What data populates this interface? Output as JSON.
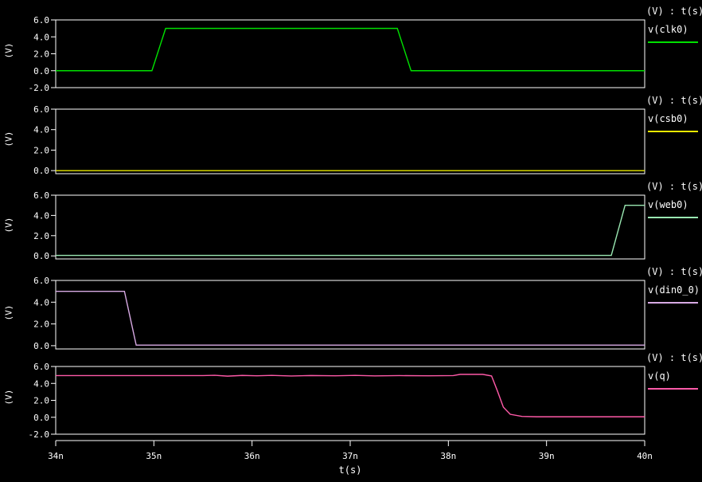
{
  "colors": {
    "background": "#000000",
    "frame": "#ffffff",
    "text": "#ffffff"
  },
  "chart_data": {
    "type": "line",
    "xlabel": "t(s)",
    "xlim": [
      34,
      40
    ],
    "x_unit": "n",
    "x_tick_values": [
      34,
      35,
      36,
      37,
      38,
      39,
      40
    ],
    "x_tick_labels": [
      "34n",
      "35n",
      "36n",
      "37n",
      "38n",
      "39n",
      "40n"
    ],
    "grid": false,
    "legend_position": "right",
    "plots": [
      {
        "name": "v(clk0)",
        "legend_header": "(V) : t(s)",
        "ylabel": "(V)",
        "color": "#00e000",
        "ylim": [
          -2,
          6
        ],
        "ytick_values": [
          6,
          4,
          2,
          0,
          -2
        ],
        "ytick_labels": [
          "6.0",
          "4.0",
          "2.0",
          "0.0",
          "-2.0"
        ],
        "points": [
          [
            34,
            0
          ],
          [
            34.98,
            0
          ],
          [
            35.12,
            5
          ],
          [
            37.48,
            5
          ],
          [
            37.62,
            0
          ],
          [
            40,
            0
          ]
        ]
      },
      {
        "name": "v(csb0)",
        "legend_header": "(V) : t(s)",
        "ylabel": "(V)",
        "color": "#e8e800",
        "ylim": [
          -0.3,
          6
        ],
        "ytick_values": [
          6,
          4,
          2,
          0
        ],
        "ytick_labels": [
          "6.0",
          "4.0",
          "2.0",
          "0.0"
        ],
        "points": [
          [
            34,
            0
          ],
          [
            40,
            0
          ]
        ]
      },
      {
        "name": "v(web0)",
        "legend_header": "(V) : t(s)",
        "ylabel": "(V)",
        "color": "#9ae8b2",
        "ylim": [
          -0.3,
          6
        ],
        "ytick_values": [
          6,
          4,
          2,
          0
        ],
        "ytick_labels": [
          "6.0",
          "4.0",
          "2.0",
          "0.0"
        ],
        "points": [
          [
            34,
            0.05
          ],
          [
            39.66,
            0.05
          ],
          [
            39.8,
            5
          ],
          [
            40,
            5
          ]
        ]
      },
      {
        "name": "v(din0_0)",
        "legend_header": "(V) : t(s)",
        "ylabel": "(V)",
        "color": "#d8aae4",
        "ylim": [
          -0.3,
          6
        ],
        "ytick_values": [
          6,
          4,
          2,
          0
        ],
        "ytick_labels": [
          "6.0",
          "4.0",
          "2.0",
          "0.0"
        ],
        "points": [
          [
            34,
            5
          ],
          [
            34.7,
            5
          ],
          [
            34.82,
            0.05
          ],
          [
            40,
            0.05
          ]
        ]
      },
      {
        "name": "v(q)",
        "legend_header": "(V) : t(s)",
        "ylabel": "(V)",
        "color": "#ff5aa8",
        "ylim": [
          -2,
          6
        ],
        "ytick_values": [
          6,
          4,
          2,
          0,
          -2
        ],
        "ytick_labels": [
          "6.0",
          "4.0",
          "2.0",
          "0.0",
          "-2.0"
        ],
        "points": [
          [
            34,
            4.92
          ],
          [
            35.5,
            4.92
          ],
          [
            35.62,
            4.96
          ],
          [
            35.75,
            4.86
          ],
          [
            35.9,
            4.94
          ],
          [
            36.05,
            4.9
          ],
          [
            36.2,
            4.95
          ],
          [
            36.4,
            4.88
          ],
          [
            36.6,
            4.93
          ],
          [
            36.85,
            4.9
          ],
          [
            37.05,
            4.95
          ],
          [
            37.25,
            4.89
          ],
          [
            37.5,
            4.92
          ],
          [
            37.8,
            4.9
          ],
          [
            38.05,
            4.92
          ],
          [
            38.12,
            5.07
          ],
          [
            38.35,
            5.07
          ],
          [
            38.44,
            4.88
          ],
          [
            38.5,
            3.1
          ],
          [
            38.56,
            1.2
          ],
          [
            38.63,
            0.35
          ],
          [
            38.75,
            0.1
          ],
          [
            38.9,
            0.06
          ],
          [
            40,
            0.06
          ]
        ]
      }
    ]
  }
}
